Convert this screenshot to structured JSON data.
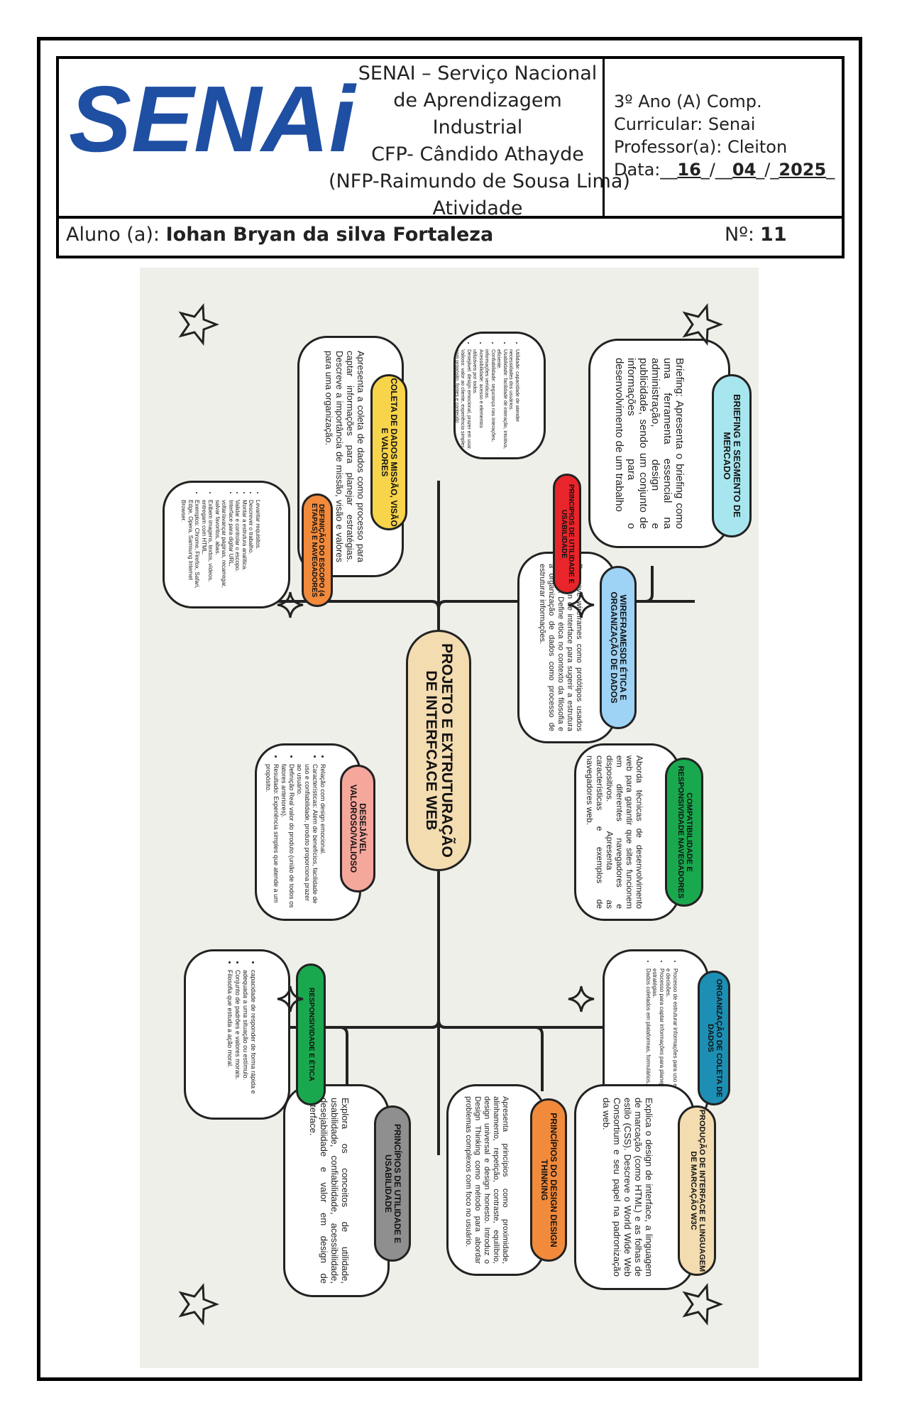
{
  "header": {
    "institution_lines": [
      "SENAI – Serviço Nacional",
      "de Aprendizagem",
      "Industrial",
      "CFP- Cândido Athayde",
      "(NFP-Raimundo de Sousa Lima)",
      "Atividade"
    ],
    "class": "3º Ano (A) Comp.",
    "curricular": "Curricular: Senai",
    "teacher": "Professor(a): Cleiton",
    "date_label": "Data:",
    "date_day": "16",
    "date_month": "04",
    "date_year": "2025",
    "student_label": "Aluno (a):",
    "student_name": "Iohan Bryan da silva Fortaleza",
    "number_label": "Nº:",
    "number_value": "11",
    "logo_text": "SENAi"
  },
  "mindmap": {
    "center": "PROJETO E EXTRUTURAÇÃO DE INTERFCACE WEB",
    "nodes": {
      "briefing": {
        "title": "BRIEFING E SEGMENTO DE MERCADO",
        "color": "#a8e6ef",
        "text": "Briefing: Apresenta o briefing como uma ferramenta essencial na administração, design e publicidade, sendo um conjunto de informações para o desenvolvimento de um trabalho"
      },
      "principios_top": {
        "title": "PRINCIPIOS DE UTILIDADE E USABILIDADE",
        "color": "#e8252a",
        "items": [
          "Utilidade: capacidade de atender necessidades dos usuários.",
          "Usabilidade: facilidade de interação, intuitiva, eficiente.",
          "Confiabilidade: segurança nas interações, informações verídicas.",
          "Acessibilidade: acesso e elementos utilizáveis por todos.",
          "Desejável: design emocional, prazer em usar.",
          "Valioso: valor ao cliente, experiência simples com propósito, fontes e conteúdo relacionado."
        ]
      },
      "compat": {
        "title": "COMPATIBILIDADE E RESPONSIVIDADE NAVEGADORES",
        "color": "#1aa84e",
        "text": "Aborda técnicas de desenvolvimento web para garantir que sites funcionem em diferentes navegadores e dispositivos. Apresenta as características e exemplos de navegadores web."
      },
      "organizacao": {
        "title": "ORGANIZAÇÃO DE COLETA DE DADOS",
        "color": "#1e8fb4",
        "items": [
          "Processo de estruturar informações para uso em análises e decisões.",
          "Processo para captar informações para planejar estratégias.",
          "Dados coletados em plataformas, formulários, sites."
        ]
      },
      "producao": {
        "title": "PRODUÇÃO DE INTERFACE E LINGUAGEM DE MARCAÇÃO W3C",
        "color": "#f3dcb0",
        "text": "Explica o design de interface, a linguagem de marcação (como HTML) e as folhas de estilo (CSS). Descreve o World Wide Web Consortium e seu papel na padronização da web."
      },
      "wireframes": {
        "title": "WIREFRAMESDE ÉTICA E ORGANIZAÇÃO DE DADOS",
        "color": "#9ed3f5",
        "text": "Descreve wireframes como protótipos usados no design de interface para sugerir a estrutura de sites. Define ética no contexto da filosofia e a organização de dados como processo de estruturar informações."
      },
      "design_thinking": {
        "title": "PRINCÍPIOS DO DESIGN DESIGN THINKING",
        "color": "#f28a3c",
        "text": "Apresenta princípios como proximidade, alinhamento, repetição, contraste, equilíbrio, design universal e design honesto. Introduz o Design Thinking como método para abordar problemas complexos com foco no usuário."
      },
      "coleta": {
        "title": "COLETA DE DADOS MISSÃO, VISÃO E VALORES",
        "color": "#f7d44a",
        "text": "Apresenta a coleta de dados como processo para captar informações para planejar estratégias. Descreve a importância de missão, visão e valores para uma organização."
      },
      "escopo": {
        "title": "DEFINIÇÃO DO ESCOPO (4 ETAPAS) E NAVEGADORES",
        "color": "#f28a3c",
        "items": [
          "Levantar requisitos.",
          "Descrever o trabalho.",
          "Montar a estrutura analítica.",
          "Validar e controlar o escopo.",
          "Interface para digitar URL, voltar/avançar páginas, recarregar, salvar favoritos, abas.",
          "Exibem imagens, textos, vídeos, entregam com HTML.",
          "Exemplos: Chrome, Firefox, Safari, Edge, Opera, Samsung Internet Browser."
        ]
      },
      "desejavel": {
        "title": "DESEJÁVEL VALOROSO/VALIOSO",
        "color": "#f6a79c",
        "items": [
          "Relação com design emocional.",
          "Características: Além de benefícios, facilidade de uso e confiabilidade, produto proporciona prazer ao usuário.",
          "Definição Real valor do produto (união de todos os fatores anteriores).",
          "Resultado: Experiência simples que atende a um propósito."
        ]
      },
      "responsividade": {
        "title": "RESPONSIVIDADE E ÉTICA",
        "color": "#1aa84e",
        "items": [
          "capacidade de responder de forma rápida e adequada a uma situação ou estímulo.",
          "Conjunto de padrões e valores morais.",
          "Filosofia que estuda a ação moral."
        ]
      },
      "principios_bottom": {
        "title": "PRINCÍPIOS DE UTILIDADE E USABILIDADE",
        "color": "#8f8f8f",
        "text": "Explora os conceitos de utilidade, usabilidade, confiabilidade, acessibilidade, desejabilidade e valor em design de interface."
      }
    }
  },
  "colors": {
    "logo_blue": "#1f4fa3",
    "panel_bg": "#efefe9"
  }
}
